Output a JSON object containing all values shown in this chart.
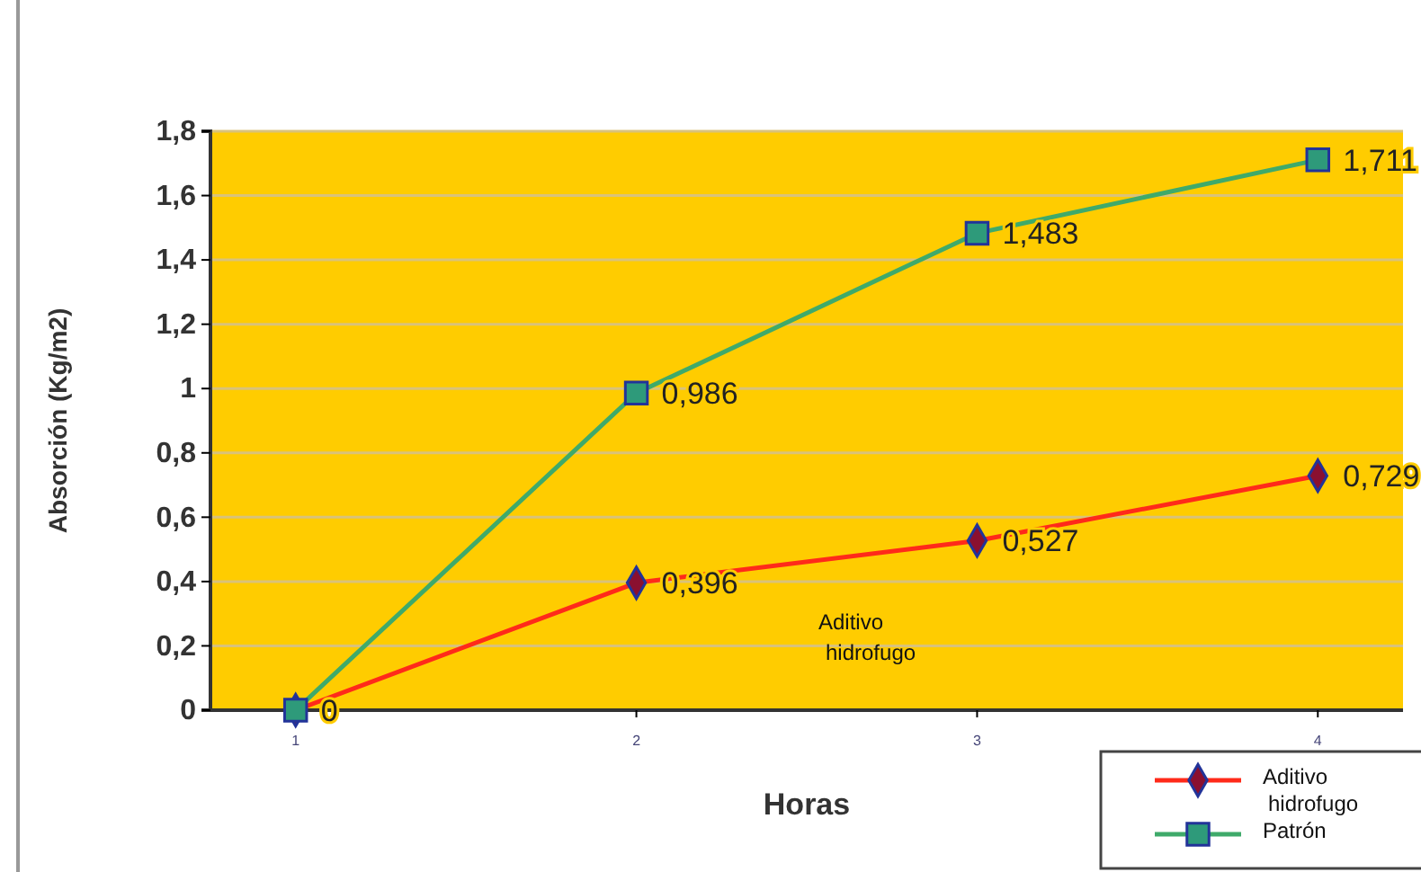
{
  "chart_data": {
    "type": "line",
    "xlabel": "Horas",
    "ylabel": "Absorción (Kg/m2)",
    "categories": [
      "1",
      "2",
      "3",
      "4"
    ],
    "series": [
      {
        "name": "Aditivo hidrofugo",
        "color": "#ff2a1a",
        "marker": "diamond",
        "values": [
          0,
          0.396,
          0.527,
          0.729
        ],
        "value_labels": [
          null,
          "0,396",
          "0,527",
          "0,729"
        ]
      },
      {
        "name": "Patrón",
        "color": "#3faa6a",
        "marker": "square",
        "values": [
          0,
          0.986,
          1.483,
          1.711
        ],
        "value_labels": [
          "0",
          "0,986",
          "1,483",
          "1,711"
        ]
      }
    ],
    "ylim": [
      0,
      1.8
    ],
    "yticks": [
      {
        "value": 0,
        "label": "0"
      },
      {
        "value": 0.2,
        "label": "0,2"
      },
      {
        "value": 0.4,
        "label": "0,4"
      },
      {
        "value": 0.6,
        "label": "0,6"
      },
      {
        "value": 0.8,
        "label": "0,8"
      },
      {
        "value": 1,
        "label": "1"
      },
      {
        "value": 1.2,
        "label": "1,2"
      },
      {
        "value": 1.4,
        "label": "1,4"
      },
      {
        "value": 1.6,
        "label": "1,6"
      },
      {
        "value": 1.8,
        "label": "1,8"
      }
    ],
    "grid": "y",
    "legend": "bottom right",
    "annotations": [
      "Aditivo hidrofugo"
    ]
  }
}
